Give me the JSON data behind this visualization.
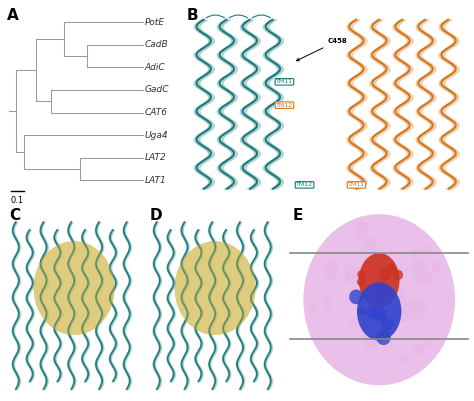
{
  "panel_label_fontsize": 11,
  "panel_label_fontweight": "bold",
  "background_color": "#ffffff",
  "tree": {
    "leaves": [
      "PotE",
      "CadB",
      "AdiC",
      "GadC",
      "CAT6",
      "Uga4",
      "LAT2",
      "LAT1"
    ],
    "leaf_y": [
      8.0,
      7.0,
      6.0,
      5.0,
      4.0,
      3.0,
      2.0,
      1.0
    ],
    "line_color": "#999999",
    "text_color": "#333333",
    "fontsize": 6.5,
    "scalebar_label": "0.1"
  },
  "teal": "#1a7a7a",
  "orange": "#d4751a",
  "yellow": "#d4b84a",
  "pink": "#e8b8e8",
  "blue": "#3344cc",
  "red": "#cc3322",
  "fig_width": 4.74,
  "fig_height": 4.01,
  "dpi": 100
}
